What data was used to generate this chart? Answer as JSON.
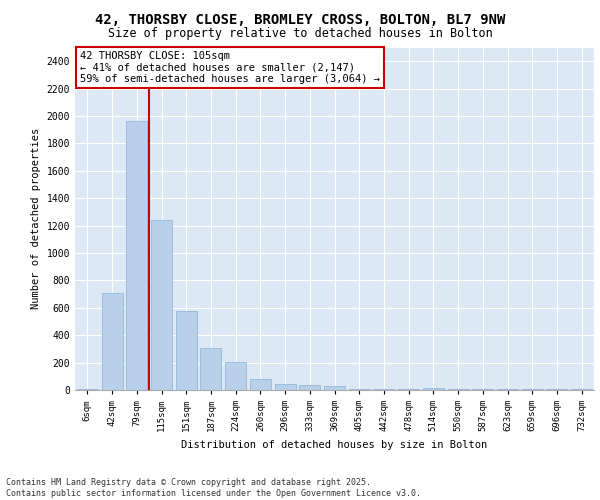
{
  "title_line1": "42, THORSBY CLOSE, BROMLEY CROSS, BOLTON, BL7 9NW",
  "title_line2": "Size of property relative to detached houses in Bolton",
  "xlabel": "Distribution of detached houses by size in Bolton",
  "ylabel": "Number of detached properties",
  "categories": [
    "6sqm",
    "42sqm",
    "79sqm",
    "115sqm",
    "151sqm",
    "187sqm",
    "224sqm",
    "260sqm",
    "296sqm",
    "333sqm",
    "369sqm",
    "405sqm",
    "442sqm",
    "478sqm",
    "514sqm",
    "550sqm",
    "587sqm",
    "623sqm",
    "659sqm",
    "696sqm",
    "732sqm"
  ],
  "values": [
    10,
    710,
    1960,
    1240,
    580,
    310,
    205,
    80,
    45,
    35,
    30,
    5,
    5,
    5,
    15,
    5,
    5,
    5,
    5,
    5,
    5
  ],
  "bar_color": "#b8d0ea",
  "bar_edgecolor": "#8ab0d4",
  "background_color": "#dce9f5",
  "grid_color": "#ffffff",
  "vline_color": "#cc0000",
  "vline_x_index": 2.5,
  "annotation_text": "42 THORSBY CLOSE: 105sqm\n← 41% of detached houses are smaller (2,147)\n59% of semi-detached houses are larger (3,064) →",
  "annotation_box_facecolor": "#ffffff",
  "annotation_box_edgecolor": "#cc0000",
  "fig_facecolor": "#ffffff",
  "footer_text": "Contains HM Land Registry data © Crown copyright and database right 2025.\nContains public sector information licensed under the Open Government Licence v3.0.",
  "ylim": [
    0,
    2500
  ],
  "yticks": [
    0,
    200,
    400,
    600,
    800,
    1000,
    1200,
    1400,
    1600,
    1800,
    2000,
    2200,
    2400
  ]
}
